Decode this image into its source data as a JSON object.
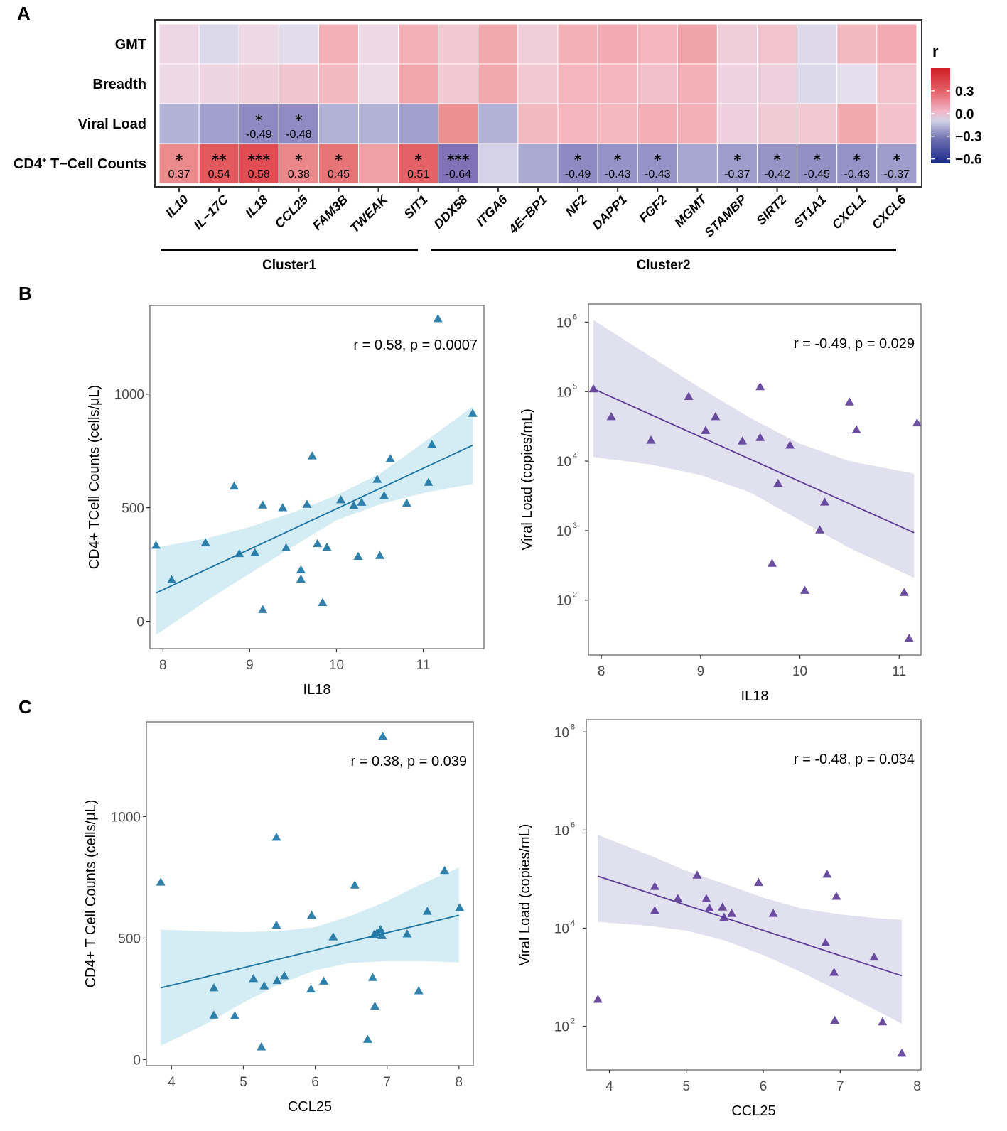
{
  "panels": {
    "A": "A",
    "B": "B",
    "C": "C"
  },
  "chart_data": [
    {
      "id": "heatmap",
      "type": "heatmap",
      "title": "",
      "rows": [
        "GMT",
        "Breadth",
        "Viral Load",
        "CD4+ T-Cell Counts"
      ],
      "row_label_display": {
        "CD4+ T-Cell Counts": {
          "prefix": "CD4",
          "sup": "+",
          "suffix": " T−Cell Counts"
        }
      },
      "columns": [
        "IL10",
        "IL−17C",
        "IL18",
        "CCL25",
        "FAM3B",
        "TWEAK",
        "SIT1",
        "DDX58",
        "ITGA6",
        "4E−BP1",
        "NF2",
        "DAPP1",
        "FGF2",
        "MGMT",
        "STAMBP",
        "SIRT2",
        "ST1A1",
        "CXCL1",
        "CXCL6"
      ],
      "values": [
        [
          0.03,
          -0.05,
          0.02,
          -0.02,
          0.22,
          0.02,
          0.22,
          0.1,
          0.25,
          0.08,
          0.22,
          0.24,
          0.2,
          0.27,
          0.08,
          0.13,
          -0.04,
          0.18,
          0.24
        ],
        [
          0.02,
          0.04,
          0.07,
          0.12,
          0.18,
          0.01,
          0.26,
          0.1,
          0.25,
          0.1,
          0.2,
          0.2,
          0.15,
          0.22,
          0.05,
          0.06,
          -0.05,
          -0.01,
          0.13
        ],
        [
          -0.25,
          -0.35,
          -0.49,
          -0.48,
          -0.25,
          -0.25,
          -0.35,
          0.35,
          -0.25,
          0.18,
          0.2,
          0.19,
          0.23,
          0.22,
          0.06,
          0.09,
          0.1,
          0.25,
          0.14
        ],
        [
          0.37,
          0.54,
          0.58,
          0.38,
          0.45,
          0.28,
          0.51,
          -0.64,
          -0.08,
          -0.3,
          -0.49,
          -0.43,
          -0.43,
          -0.32,
          -0.37,
          -0.42,
          -0.45,
          -0.43,
          -0.37
        ]
      ],
      "annotations": [
        {
          "row": 2,
          "col": 2,
          "stars": "*",
          "value": "-0.49"
        },
        {
          "row": 2,
          "col": 3,
          "stars": "*",
          "value": "-0.48"
        },
        {
          "row": 3,
          "col": 0,
          "stars": "*",
          "value": "0.37"
        },
        {
          "row": 3,
          "col": 1,
          "stars": "**",
          "value": "0.54"
        },
        {
          "row": 3,
          "col": 2,
          "stars": "***",
          "value": "0.58"
        },
        {
          "row": 3,
          "col": 3,
          "stars": "*",
          "value": "0.38"
        },
        {
          "row": 3,
          "col": 4,
          "stars": "*",
          "value": "0.45"
        },
        {
          "row": 3,
          "col": 6,
          "stars": "*",
          "value": "0.51"
        },
        {
          "row": 3,
          "col": 7,
          "stars": "***",
          "value": "-0.64"
        },
        {
          "row": 3,
          "col": 10,
          "stars": "*",
          "value": "-0.49"
        },
        {
          "row": 3,
          "col": 11,
          "stars": "*",
          "value": "-0.43"
        },
        {
          "row": 3,
          "col": 12,
          "stars": "*",
          "value": "-0.43"
        },
        {
          "row": 3,
          "col": 14,
          "stars": "*",
          "value": "-0.37"
        },
        {
          "row": 3,
          "col": 15,
          "stars": "*",
          "value": "-0.42"
        },
        {
          "row": 3,
          "col": 16,
          "stars": "*",
          "value": "-0.45"
        },
        {
          "row": 3,
          "col": 17,
          "stars": "*",
          "value": "-0.43"
        },
        {
          "row": 3,
          "col": 18,
          "stars": "*",
          "value": "-0.37"
        }
      ],
      "clusters": [
        {
          "label": "Cluster1",
          "from_col": 0,
          "to_col": 6
        },
        {
          "label": "Cluster2",
          "from_col": 7,
          "to_col": 18
        }
      ],
      "legend": {
        "title": "r",
        "ticks": [
          "0.3",
          "0.0",
          "−0.3",
          "−0.6"
        ],
        "tick_values": [
          0.3,
          0.0,
          -0.3,
          -0.6
        ],
        "range": [
          -0.66,
          0.6
        ],
        "colors": {
          "low": "#1a2a8a",
          "mid_low": "#c9c9e2",
          "mid": "#f5d2de",
          "high": "#cf1f25"
        },
        "placement": "right"
      }
    },
    {
      "id": "B-left",
      "type": "scatter",
      "xlabel": "IL18",
      "ylabel": "CD4+ TCell Counts (cells/μL)",
      "xlim": [
        7.85,
        11.7
      ],
      "ylim": [
        -120,
        1390
      ],
      "xticks": [
        8,
        9,
        10,
        11
      ],
      "yticks": [
        0,
        500,
        1000
      ],
      "yscale": "linear",
      "annotation": "r = 0.58, p = 0.0007",
      "color": "#1a73a3",
      "ribbon_color": "#d4ecf3",
      "fit": {
        "x": [
          7.92,
          11.57
        ],
        "y": [
          125,
          775
        ]
      },
      "ribbon": {
        "x": [
          7.92,
          8.5,
          9.0,
          9.5,
          10.0,
          10.5,
          11.0,
          11.57
        ],
        "upper": [
          325,
          365,
          415,
          480,
          555,
          650,
          785,
          945
        ],
        "lower": [
          -60,
          90,
          210,
          330,
          445,
          515,
          565,
          605
        ]
      },
      "points": [
        [
          7.92,
          335
        ],
        [
          8.1,
          183
        ],
        [
          8.49,
          346
        ],
        [
          8.82,
          595
        ],
        [
          8.88,
          298
        ],
        [
          9.06,
          302
        ],
        [
          9.15,
          512
        ],
        [
          9.15,
          52
        ],
        [
          9.38,
          500
        ],
        [
          9.42,
          324
        ],
        [
          9.59,
          227
        ],
        [
          9.59,
          186
        ],
        [
          9.66,
          515
        ],
        [
          9.72,
          728
        ],
        [
          9.78,
          342
        ],
        [
          9.84,
          83
        ],
        [
          9.89,
          326
        ],
        [
          10.05,
          535
        ],
        [
          10.2,
          510
        ],
        [
          10.25,
          286
        ],
        [
          10.29,
          524
        ],
        [
          10.47,
          625
        ],
        [
          10.5,
          290
        ],
        [
          10.55,
          553
        ],
        [
          10.62,
          716
        ],
        [
          10.81,
          520
        ],
        [
          11.06,
          612
        ],
        [
          11.1,
          778
        ],
        [
          11.17,
          1332
        ],
        [
          11.57,
          915
        ]
      ]
    },
    {
      "id": "B-right",
      "type": "scatter",
      "xlabel": "IL18",
      "ylabel": "Viral Load (copies/mL)",
      "xlim": [
        7.87,
        11.22
      ],
      "ylim_log10": [
        1.21,
        6.26
      ],
      "xticks": [
        8,
        9,
        10,
        11
      ],
      "yticks_log10": [
        2,
        3,
        4,
        5,
        6
      ],
      "yscale": "log10",
      "annotation": "r = -0.49, p = 0.029",
      "color": "#5b3b96",
      "ribbon_color": "#e0e0ee",
      "fit": {
        "x": [
          7.92,
          11.15
        ],
        "y_log10": [
          5.04,
          2.97
        ]
      },
      "ribbon": {
        "x": [
          7.92,
          8.5,
          9.0,
          9.5,
          10.0,
          10.5,
          11.15
        ],
        "upper_log10": [
          6.03,
          5.5,
          5.05,
          4.62,
          4.25,
          4.0,
          3.82
        ],
        "lower_log10": [
          4.06,
          3.95,
          3.8,
          3.55,
          3.15,
          2.75,
          2.32
        ]
      },
      "points_log10": [
        [
          7.92,
          5.04
        ],
        [
          8.1,
          4.64
        ],
        [
          8.5,
          4.3
        ],
        [
          8.88,
          4.93
        ],
        [
          9.05,
          4.44
        ],
        [
          9.15,
          4.64
        ],
        [
          9.42,
          4.29
        ],
        [
          9.6,
          5.07
        ],
        [
          9.6,
          4.34
        ],
        [
          9.72,
          2.53
        ],
        [
          9.78,
          3.68
        ],
        [
          9.9,
          4.23
        ],
        [
          10.05,
          2.14
        ],
        [
          10.2,
          3.01
        ],
        [
          10.25,
          3.41
        ],
        [
          10.5,
          4.85
        ],
        [
          10.57,
          4.45
        ],
        [
          11.05,
          2.11
        ],
        [
          11.1,
          1.45
        ],
        [
          11.18,
          4.55
        ]
      ]
    },
    {
      "id": "C-left",
      "type": "scatter",
      "xlabel": "CCL25",
      "ylabel": "CD4+ T Cell Counts (cells/μL)",
      "xlim": [
        3.65,
        8.2
      ],
      "ylim": [
        -25,
        1390
      ],
      "xticks": [
        4,
        5,
        6,
        7,
        8
      ],
      "yticks": [
        0,
        500,
        1000
      ],
      "yscale": "linear",
      "annotation": "r = 0.38, p = 0.039",
      "color": "#1a73a3",
      "ribbon_color": "#d4ecf3",
      "fit": {
        "x": [
          3.85,
          8.0
        ],
        "y": [
          295,
          594
        ]
      },
      "ribbon": {
        "x": [
          3.85,
          4.5,
          5.0,
          5.5,
          6.0,
          6.5,
          7.0,
          7.5,
          8.0
        ],
        "upper": [
          535,
          527,
          525,
          528,
          545,
          592,
          652,
          725,
          790
        ],
        "lower": [
          57,
          150,
          235,
          310,
          368,
          398,
          405,
          405,
          400
        ]
      },
      "points": [
        [
          3.85,
          730
        ],
        [
          4.59,
          295
        ],
        [
          4.59,
          183
        ],
        [
          4.88,
          180
        ],
        [
          5.14,
          333
        ],
        [
          5.25,
          52
        ],
        [
          5.29,
          303
        ],
        [
          5.46,
          915
        ],
        [
          5.46,
          553
        ],
        [
          5.47,
          325
        ],
        [
          5.57,
          345
        ],
        [
          5.94,
          290
        ],
        [
          5.95,
          594
        ],
        [
          6.12,
          323
        ],
        [
          6.25,
          505
        ],
        [
          6.55,
          718
        ],
        [
          6.73,
          83
        ],
        [
          6.8,
          338
        ],
        [
          6.83,
          220
        ],
        [
          6.82,
          515
        ],
        [
          6.86,
          522
        ],
        [
          6.91,
          535
        ],
        [
          6.93,
          510
        ],
        [
          6.94,
          1330
        ],
        [
          7.28,
          517
        ],
        [
          7.44,
          283
        ],
        [
          7.56,
          610
        ],
        [
          7.8,
          778
        ],
        [
          8.01,
          625
        ]
      ]
    },
    {
      "id": "C-right",
      "type": "scatter",
      "xlabel": "CCL25",
      "ylabel": "Viral Load (copies/mL)",
      "xlim": [
        3.7,
        8.05
      ],
      "ylim_log10": [
        1.11,
        8.25
      ],
      "xticks": [
        4,
        5,
        6,
        7,
        8
      ],
      "yticks_log10": [
        2,
        4,
        6,
        8
      ],
      "yscale": "log10",
      "annotation": "r = -0.48, p = 0.034",
      "color": "#5b3b96",
      "ribbon_color": "#e0e0ee",
      "fit": {
        "x": [
          3.85,
          7.8
        ],
        "y_log10": [
          5.06,
          3.03
        ]
      },
      "ribbon": {
        "x": [
          3.85,
          4.5,
          5.0,
          5.5,
          6.0,
          6.5,
          7.0,
          7.5,
          7.8
        ],
        "upper_log10": [
          5.9,
          5.5,
          5.17,
          4.9,
          4.62,
          4.4,
          4.28,
          4.2,
          4.17
        ],
        "lower_log10": [
          4.13,
          4.05,
          3.95,
          3.75,
          3.45,
          3.1,
          2.7,
          2.3,
          2.05
        ]
      },
      "points_log10": [
        [
          3.85,
          2.55
        ],
        [
          4.59,
          4.36
        ],
        [
          4.59,
          4.85
        ],
        [
          4.89,
          4.6
        ],
        [
          5.14,
          5.08
        ],
        [
          5.26,
          4.6
        ],
        [
          5.3,
          4.41
        ],
        [
          5.47,
          4.43
        ],
        [
          5.49,
          4.22
        ],
        [
          5.59,
          4.3
        ],
        [
          5.94,
          4.93
        ],
        [
          6.13,
          4.3
        ],
        [
          6.81,
          3.7
        ],
        [
          6.83,
          5.1
        ],
        [
          6.92,
          3.1
        ],
        [
          6.93,
          2.12
        ],
        [
          6.95,
          4.65
        ],
        [
          7.44,
          3.41
        ],
        [
          7.55,
          2.09
        ],
        [
          7.8,
          1.45
        ]
      ]
    }
  ]
}
